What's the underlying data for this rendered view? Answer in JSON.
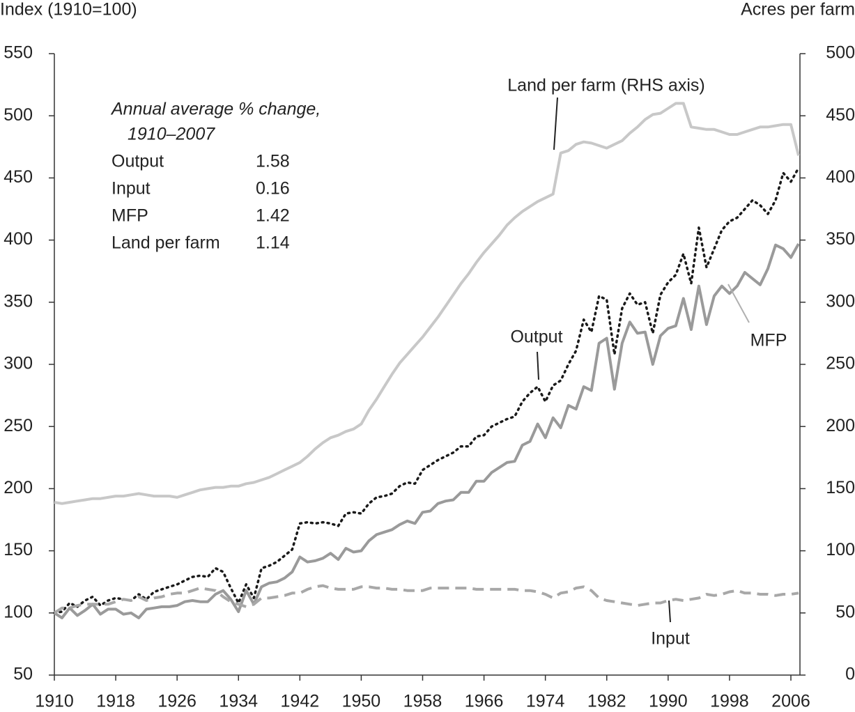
{
  "chart_data": {
    "type": "line",
    "y_label": "Index (1910=100)",
    "y2_label": "Acres per farm",
    "x": [
      1910,
      1911,
      1912,
      1913,
      1914,
      1915,
      1916,
      1917,
      1918,
      1919,
      1920,
      1921,
      1922,
      1923,
      1924,
      1925,
      1926,
      1927,
      1928,
      1929,
      1930,
      1931,
      1932,
      1933,
      1934,
      1935,
      1936,
      1937,
      1938,
      1939,
      1940,
      1941,
      1942,
      1943,
      1944,
      1945,
      1946,
      1947,
      1948,
      1949,
      1950,
      1951,
      1952,
      1953,
      1954,
      1955,
      1956,
      1957,
      1958,
      1959,
      1960,
      1961,
      1962,
      1963,
      1964,
      1965,
      1966,
      1967,
      1968,
      1969,
      1970,
      1971,
      1972,
      1973,
      1974,
      1975,
      1976,
      1977,
      1978,
      1979,
      1980,
      1981,
      1982,
      1983,
      1984,
      1985,
      1986,
      1987,
      1988,
      1989,
      1990,
      1991,
      1992,
      1993,
      1994,
      1995,
      1996,
      1997,
      1998,
      1999,
      2000,
      2001,
      2002,
      2003,
      2004,
      2005,
      2006,
      2007
    ],
    "xlim": [
      1910,
      2007
    ],
    "xticks": [
      1910,
      1918,
      1926,
      1934,
      1942,
      1950,
      1958,
      1966,
      1974,
      1982,
      1990,
      1998,
      2006
    ],
    "ylim": [
      50,
      550
    ],
    "yticks": [
      50,
      100,
      150,
      200,
      250,
      300,
      350,
      400,
      450,
      500,
      550
    ],
    "y2lim": [
      0,
      500
    ],
    "y2ticks": [
      0,
      50,
      100,
      150,
      200,
      250,
      300,
      350,
      400,
      450,
      500
    ],
    "series": [
      {
        "name": "Land per farm (RHS axis)",
        "color": "#c8c8c8",
        "style": "solid",
        "axis": "y2",
        "values": [
          139,
          138,
          139,
          140,
          141,
          142,
          142,
          143,
          144,
          144,
          145,
          146,
          145,
          144,
          144,
          144,
          143,
          145,
          147,
          149,
          150,
          151,
          151,
          152,
          152,
          154,
          155,
          157,
          159,
          162,
          165,
          168,
          171,
          176,
          182,
          187,
          191,
          193,
          196,
          198,
          202,
          213,
          222,
          232,
          242,
          251,
          258,
          265,
          272,
          280,
          288,
          297,
          306,
          315,
          323,
          332,
          340,
          347,
          354,
          362,
          368,
          373,
          377,
          381,
          384,
          387,
          420,
          422,
          427,
          429,
          428,
          426,
          424,
          427,
          430,
          436,
          441,
          447,
          451,
          452,
          456,
          460,
          460,
          441,
          440,
          439,
          439,
          437,
          435,
          435,
          437,
          439,
          441,
          441,
          442,
          443,
          443,
          418
        ]
      },
      {
        "name": "Output",
        "color": "#1a1a1a",
        "style": "dotted",
        "values": [
          100,
          101,
          108,
          105,
          110,
          113,
          106,
          110,
          112,
          111,
          110,
          115,
          111,
          117,
          119,
          121,
          123,
          126,
          129,
          130,
          129,
          136,
          133,
          120,
          108,
          123,
          112,
          136,
          138,
          141,
          146,
          151,
          172,
          173,
          172,
          173,
          172,
          170,
          180,
          181,
          180,
          188,
          193,
          194,
          196,
          202,
          205,
          204,
          215,
          219,
          223,
          226,
          229,
          234,
          234,
          242,
          243,
          250,
          253,
          256,
          258,
          270,
          277,
          282,
          270,
          283,
          287,
          300,
          311,
          336,
          326,
          355,
          352,
          308,
          345,
          357,
          348,
          350,
          325,
          356,
          366,
          372,
          389,
          365,
          410,
          378,
          393,
          408,
          415,
          418,
          425,
          432,
          428,
          421,
          432,
          454,
          447,
          458
        ]
      },
      {
        "name": "MFP",
        "color": "#9a9a9a",
        "style": "solid",
        "values": [
          100,
          96,
          104,
          98,
          102,
          107,
          99,
          103,
          103,
          99,
          100,
          96,
          103,
          104,
          105,
          105,
          106,
          109,
          110,
          109,
          109,
          115,
          118,
          111,
          101,
          118,
          107,
          121,
          124,
          125,
          128,
          133,
          145,
          141,
          142,
          144,
          148,
          143,
          152,
          149,
          150,
          158,
          163,
          165,
          167,
          171,
          174,
          172,
          181,
          182,
          188,
          190,
          191,
          197,
          197,
          206,
          206,
          213,
          217,
          221,
          222,
          235,
          238,
          252,
          241,
          257,
          249,
          267,
          264,
          282,
          279,
          317,
          321,
          280,
          317,
          334,
          325,
          326,
          300,
          323,
          329,
          331,
          353,
          328,
          363,
          332,
          355,
          363,
          357,
          363,
          374,
          369,
          364,
          377,
          396,
          393,
          386,
          397
        ]
      },
      {
        "name": "Input",
        "color": "#a8a8a8",
        "style": "dashed",
        "values": [
          100,
          104,
          104,
          106,
          107,
          107,
          107,
          107,
          109,
          111,
          110,
          113,
          110,
          112,
          113,
          115,
          116,
          116,
          118,
          120,
          119,
          118,
          113,
          109,
          107,
          105,
          107,
          112,
          112,
          113,
          114,
          116,
          116,
          119,
          121,
          122,
          120,
          119,
          119,
          119,
          121,
          121,
          120,
          120,
          119,
          119,
          118,
          118,
          118,
          120,
          120,
          120,
          120,
          120,
          120,
          119,
          119,
          119,
          119,
          119,
          119,
          118,
          118,
          117,
          115,
          112,
          116,
          117,
          120,
          121,
          118,
          112,
          110,
          109,
          108,
          107,
          106,
          107,
          108,
          108,
          110,
          111,
          110,
          111,
          112,
          115,
          114,
          115,
          117,
          118,
          116,
          116,
          115,
          115,
          114,
          115,
          115,
          116
        ]
      }
    ],
    "table": {
      "title": [
        "Annual average % change,",
        "1910–2007"
      ],
      "rows": [
        [
          "Output",
          1.58
        ],
        [
          "Input",
          0.16
        ],
        [
          "MFP",
          1.42
        ],
        [
          "Land per farm",
          1.14
        ]
      ]
    }
  }
}
